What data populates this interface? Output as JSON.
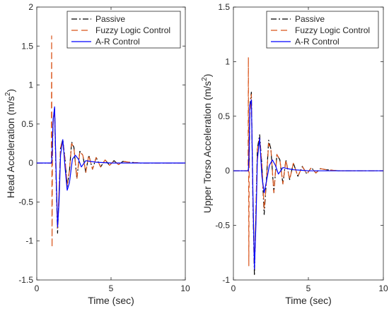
{
  "chart_data": [
    {
      "type": "line",
      "xlabel": "Time (sec)",
      "ylabel": "Head Acceleration (m/s",
      "ylabel_sup": "2",
      "ylabel_close": ")",
      "xlim": [
        0,
        10
      ],
      "ylim": [
        -1.5,
        2
      ],
      "xticks": [
        "0",
        "5",
        "10"
      ],
      "yticks": [
        "-1.5",
        "-1",
        "-0.5",
        "0",
        "0.5",
        "1",
        "1.5",
        "2"
      ],
      "grid": false,
      "legend_position": "top-right",
      "series": [
        {
          "name": "Passive",
          "color": "#000000",
          "dash": "dash-dot",
          "x": [
            0,
            1.0,
            1.05,
            1.1,
            1.2,
            1.3,
            1.4,
            1.5,
            1.6,
            1.75,
            1.9,
            2.05,
            2.2,
            2.35,
            2.5,
            2.7,
            2.9,
            3.1,
            3.3,
            3.5,
            3.75,
            4.0,
            4.3,
            4.6,
            4.9,
            5.2,
            5.5,
            5.8,
            6.2,
            6.6,
            7.0,
            10
          ],
          "y": [
            0,
            0,
            0.1,
            0.55,
            0.7,
            -0.2,
            -0.9,
            -0.4,
            0.2,
            0.3,
            0.05,
            -0.3,
            -0.1,
            0.27,
            0.2,
            -0.2,
            0.15,
            0.1,
            -0.12,
            0.1,
            -0.08,
            0.07,
            -0.05,
            0.04,
            -0.03,
            0.03,
            -0.02,
            0.02,
            0.01,
            0.005,
            0,
            0
          ]
        },
        {
          "name": "Fuzzy Logic Control",
          "color": "#d95319",
          "dash": "dashed",
          "x": [
            0,
            0.98,
            1.0,
            1.03,
            1.06,
            1.1,
            1.2,
            1.3,
            1.4,
            1.5,
            1.6,
            1.75,
            1.9,
            2.05,
            2.2,
            2.35,
            2.5,
            2.7,
            2.9,
            3.1,
            3.3,
            3.5,
            3.75,
            4.0,
            4.3,
            4.6,
            4.9,
            5.2,
            5.5,
            5.8,
            6.2,
            6.6,
            7.0,
            10
          ],
          "y": [
            0,
            0,
            1.63,
            -1.08,
            0.3,
            0.5,
            0.68,
            -0.15,
            -0.85,
            -0.35,
            0.2,
            0.28,
            0.05,
            -0.28,
            -0.1,
            0.25,
            0.2,
            -0.2,
            0.15,
            0.1,
            -0.12,
            0.1,
            -0.08,
            0.07,
            -0.05,
            0.04,
            -0.03,
            0.03,
            -0.02,
            0.02,
            0.01,
            0.005,
            0,
            0
          ]
        },
        {
          "name": "A-R Control",
          "color": "#0000ff",
          "dash": "solid",
          "x": [
            0,
            1.0,
            1.05,
            1.1,
            1.2,
            1.3,
            1.4,
            1.5,
            1.6,
            1.75,
            1.9,
            2.05,
            2.2,
            2.4,
            2.6,
            2.8,
            3.0,
            3.3,
            3.6,
            4.0,
            4.5,
            5.0,
            10
          ],
          "y": [
            0,
            0,
            0.2,
            0.55,
            0.72,
            -0.1,
            -0.82,
            -0.5,
            0.1,
            0.3,
            -0.05,
            -0.35,
            -0.25,
            0.05,
            0.1,
            0.05,
            -0.05,
            0.03,
            0.02,
            0.01,
            0.005,
            0,
            0
          ]
        }
      ]
    },
    {
      "type": "line",
      "xlabel": "Time (sec)",
      "ylabel": "Upper Torso Acceleration (m/s",
      "ylabel_sup": "2",
      "ylabel_close": ")",
      "xlim": [
        0,
        10
      ],
      "ylim": [
        -1,
        1.5
      ],
      "xticks": [
        "0",
        "5",
        "10"
      ],
      "yticks": [
        "-1",
        "-0.5",
        "0",
        "0.5",
        "1",
        "1.5"
      ],
      "grid": false,
      "legend_position": "top-right",
      "series": [
        {
          "name": "Passive",
          "color": "#000000",
          "dash": "dash-dot",
          "x": [
            0,
            1.0,
            1.05,
            1.1,
            1.2,
            1.3,
            1.4,
            1.5,
            1.6,
            1.75,
            1.9,
            2.05,
            2.2,
            2.35,
            2.5,
            2.7,
            2.9,
            3.1,
            3.3,
            3.5,
            3.75,
            4.0,
            4.3,
            4.6,
            4.9,
            5.2,
            5.5,
            5.8,
            6.2,
            6.6,
            7.0,
            10
          ],
          "y": [
            0,
            0,
            0.1,
            0.6,
            0.72,
            -0.3,
            -0.96,
            -0.4,
            0.2,
            0.33,
            0.05,
            -0.4,
            -0.1,
            0.28,
            0.2,
            -0.2,
            0.15,
            0.1,
            -0.12,
            0.1,
            -0.08,
            0.07,
            -0.05,
            0.04,
            -0.03,
            0.03,
            -0.02,
            0.02,
            0.01,
            0.005,
            0,
            0
          ]
        },
        {
          "name": "Fuzzy Logic Control",
          "color": "#d95319",
          "dash": "dashed",
          "x": [
            0,
            0.98,
            1.0,
            1.03,
            1.06,
            1.1,
            1.2,
            1.3,
            1.4,
            1.5,
            1.6,
            1.75,
            1.9,
            2.05,
            2.2,
            2.35,
            2.5,
            2.7,
            2.9,
            3.1,
            3.3,
            3.5,
            3.75,
            4.0,
            4.3,
            4.6,
            4.9,
            5.2,
            5.5,
            5.8,
            6.2,
            6.6,
            7.0,
            10
          ],
          "y": [
            0,
            0,
            1.04,
            -0.87,
            0.3,
            0.5,
            0.7,
            -0.25,
            -0.9,
            -0.35,
            0.2,
            0.3,
            0.05,
            -0.35,
            -0.1,
            0.25,
            0.2,
            -0.2,
            0.15,
            0.1,
            -0.12,
            0.1,
            -0.08,
            0.07,
            -0.05,
            0.04,
            -0.03,
            0.03,
            -0.02,
            0.02,
            0.01,
            0.005,
            0,
            0
          ]
        },
        {
          "name": "A-R Control",
          "color": "#0000ff",
          "dash": "solid",
          "x": [
            0,
            1.0,
            1.05,
            1.1,
            1.2,
            1.3,
            1.4,
            1.5,
            1.6,
            1.75,
            1.9,
            2.05,
            2.2,
            2.4,
            2.6,
            2.8,
            3.0,
            3.3,
            3.6,
            4.0,
            4.5,
            5.0,
            10
          ],
          "y": [
            0,
            0,
            0.2,
            0.6,
            0.65,
            -0.2,
            -0.9,
            -0.5,
            0.1,
            0.3,
            -0.05,
            -0.2,
            -0.1,
            0.05,
            0.1,
            0.05,
            -0.03,
            0.03,
            0.02,
            0.01,
            0.005,
            0,
            0
          ]
        }
      ]
    }
  ]
}
